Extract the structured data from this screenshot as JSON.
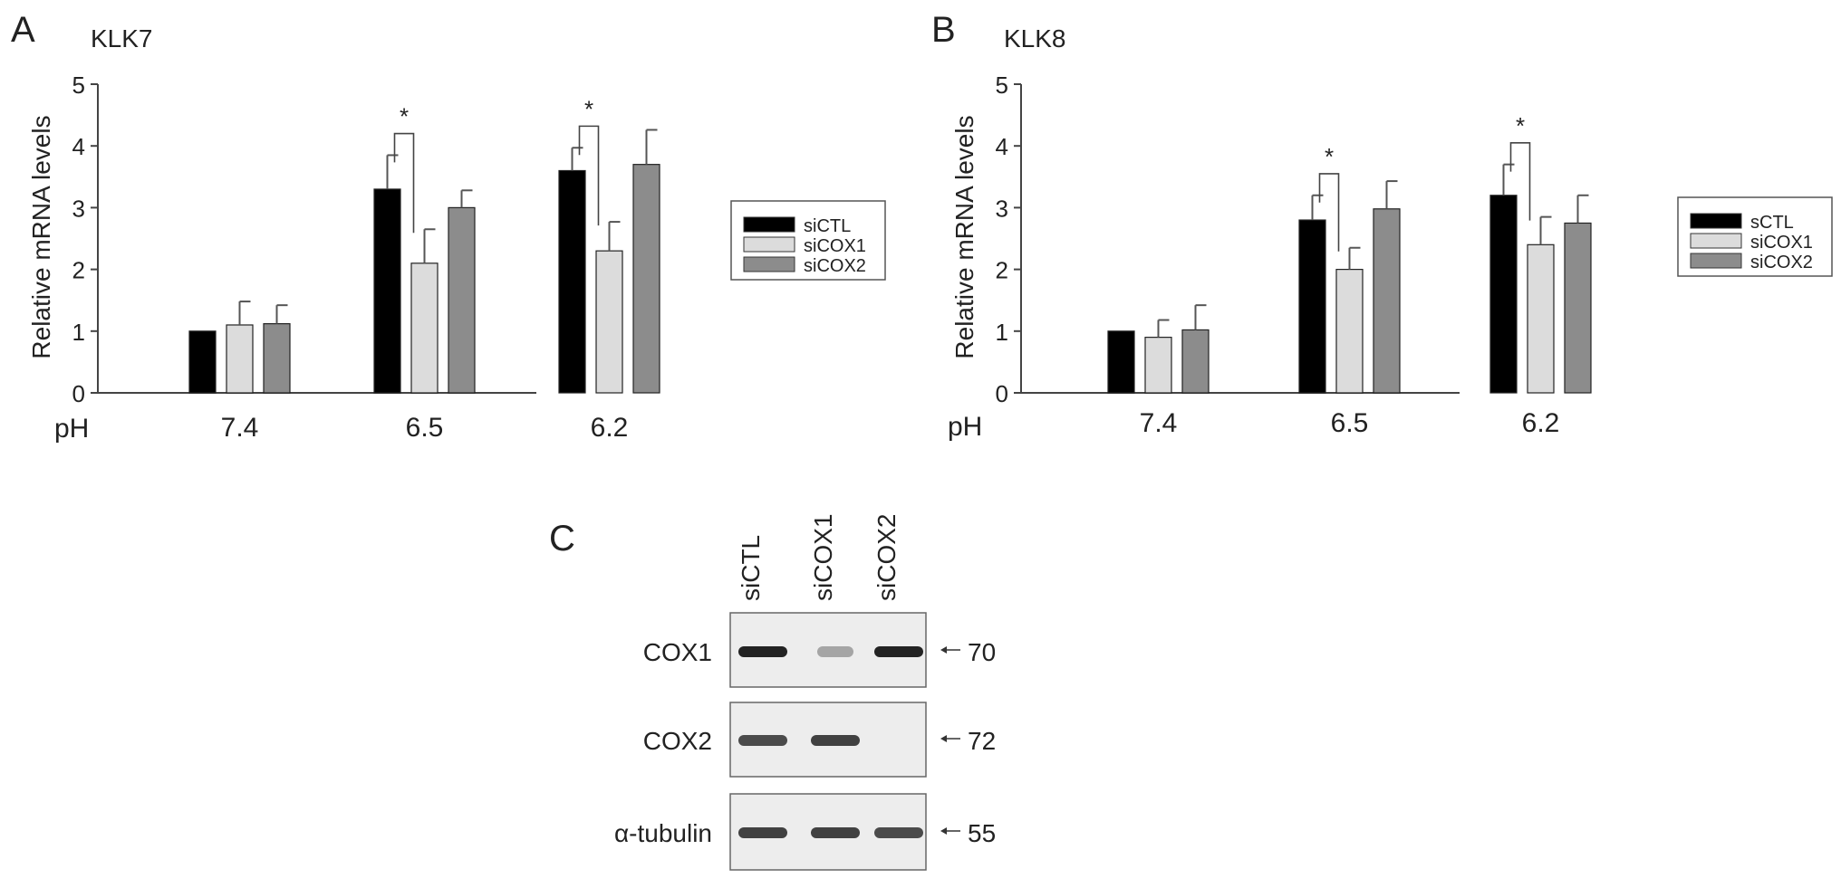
{
  "panels": {
    "A": {
      "letter": "A"
    },
    "B": {
      "letter": "B"
    },
    "C": {
      "letter": "C"
    }
  },
  "x_prefix": "pH",
  "chart_data": [
    {
      "type": "bar",
      "title": "KLK7",
      "xlabel": "",
      "ylabel": "Relative mRNA levels",
      "ylim": [
        0,
        5
      ],
      "yticks": [
        0,
        1,
        2,
        3,
        4,
        5
      ],
      "categories": [
        "7.4",
        "6.5",
        "6.2"
      ],
      "series": [
        {
          "name": "siCTL",
          "color": "#000000",
          "values": [
            1.0,
            3.3,
            3.6
          ],
          "errors": [
            0.0,
            0.55,
            0.37
          ]
        },
        {
          "name": "siCOX1",
          "color": "#dcdcdc",
          "values": [
            1.1,
            2.1,
            2.3
          ],
          "errors": [
            0.38,
            0.55,
            0.47
          ]
        },
        {
          "name": "siCOX2",
          "color": "#8c8c8c",
          "values": [
            1.12,
            3.0,
            3.7
          ],
          "errors": [
            0.3,
            0.28,
            0.56
          ]
        }
      ],
      "significance": [
        {
          "category": "6.5",
          "between": [
            "siCTL",
            "siCOX1"
          ],
          "label": "*"
        },
        {
          "category": "6.2",
          "between": [
            "siCTL",
            "siCOX1"
          ],
          "label": "*"
        }
      ],
      "legend_position": "right"
    },
    {
      "type": "bar",
      "title": "KLK8",
      "xlabel": "",
      "ylabel": "Relative mRNA levels",
      "ylim": [
        0,
        5
      ],
      "yticks": [
        0,
        1,
        2,
        3,
        4,
        5
      ],
      "categories": [
        "7.4",
        "6.5",
        "6.2"
      ],
      "series": [
        {
          "name": "sCTL",
          "color": "#000000",
          "values": [
            1.0,
            2.8,
            3.2
          ],
          "errors": [
            0.0,
            0.4,
            0.5
          ]
        },
        {
          "name": "siCOX1",
          "color": "#dcdcdc",
          "values": [
            0.9,
            2.0,
            2.4
          ],
          "errors": [
            0.28,
            0.35,
            0.45
          ]
        },
        {
          "name": "siCOX2",
          "color": "#8c8c8c",
          "values": [
            1.02,
            2.98,
            2.75
          ],
          "errors": [
            0.4,
            0.45,
            0.45
          ]
        }
      ],
      "significance": [
        {
          "category": "6.5",
          "between": [
            "sCTL",
            "siCOX1"
          ],
          "label": "*"
        },
        {
          "category": "6.2",
          "between": [
            "sCTL",
            "siCOX1"
          ],
          "label": "*"
        }
      ],
      "legend_position": "right"
    }
  ],
  "blot": {
    "lanes": [
      "siCTL",
      "siCOX1",
      "siCOX2"
    ],
    "rows": [
      {
        "label": "COX1",
        "marker": "70",
        "intensity": [
          1.0,
          0.35,
          1.0
        ]
      },
      {
        "label": "COX2",
        "marker": "72",
        "intensity": [
          0.8,
          0.85,
          0.0
        ]
      },
      {
        "label": "α-tubulin",
        "marker": "55",
        "intensity": [
          0.85,
          0.85,
          0.8
        ]
      }
    ]
  }
}
